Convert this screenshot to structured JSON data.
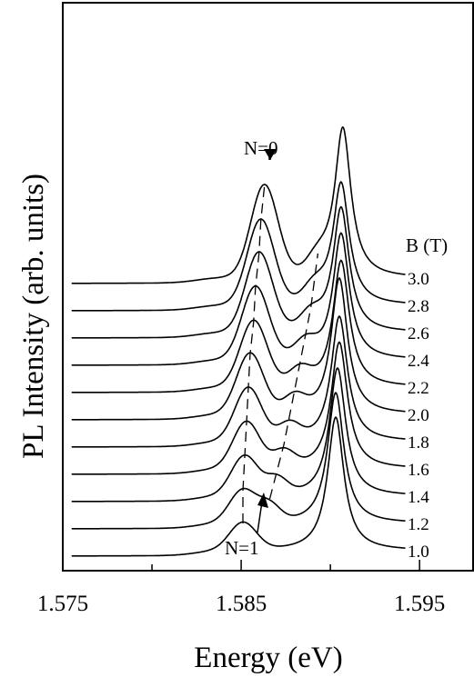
{
  "chart_data": {
    "type": "line",
    "xlabel": "Energy (eV)",
    "ylabel": "PL Intensity (arb. units)",
    "xlim": [
      1.575,
      1.598
    ],
    "x_ticks": [
      1.575,
      1.585,
      1.595
    ],
    "x_tick_labels": [
      "1.575",
      "1.585",
      "1.595"
    ],
    "legend_title": "B (T)",
    "legend_placement": "right",
    "grid": false,
    "series": [
      {
        "b_field": "1.0",
        "baseline": 0.0,
        "n0_peak": [
          1.5851,
          0.2
        ],
        "n1_peak": [
          1.5873,
          0.0
        ],
        "main_peak": [
          1.5903,
          0.98
        ]
      },
      {
        "b_field": "1.2",
        "baseline": 0.2,
        "n0_peak": [
          1.5851,
          0.24
        ],
        "n1_peak": [
          1.5866,
          0.12
        ],
        "main_peak": [
          1.5903,
          0.96
        ]
      },
      {
        "b_field": "1.4",
        "baseline": 0.4,
        "n0_peak": [
          1.5852,
          0.29
        ],
        "n1_peak": [
          1.587,
          0.12
        ],
        "main_peak": [
          1.5904,
          0.94
        ]
      },
      {
        "b_field": "1.6",
        "baseline": 0.6,
        "n0_peak": [
          1.5853,
          0.34
        ],
        "n1_peak": [
          1.5874,
          0.12
        ],
        "main_peak": [
          1.5905,
          0.93
        ]
      },
      {
        "b_field": "1.8",
        "baseline": 0.8,
        "n0_peak": [
          1.5854,
          0.39
        ],
        "n1_peak": [
          1.5877,
          0.12
        ],
        "main_peak": [
          1.5905,
          0.92
        ]
      },
      {
        "b_field": "2.0",
        "baseline": 1.0,
        "n0_peak": [
          1.5855,
          0.44
        ],
        "n1_peak": [
          1.588,
          0.12
        ],
        "main_peak": [
          1.5905,
          1.0
        ]
      },
      {
        "b_field": "2.2",
        "baseline": 1.2,
        "n0_peak": [
          1.5857,
          0.48
        ],
        "n1_peak": [
          1.5883,
          0.12
        ],
        "main_peak": [
          1.5906,
          0.93
        ]
      },
      {
        "b_field": "2.4",
        "baseline": 1.4,
        "n0_peak": [
          1.5858,
          0.53
        ],
        "n1_peak": [
          1.5886,
          0.12
        ],
        "main_peak": [
          1.5906,
          0.93
        ]
      },
      {
        "b_field": "2.6",
        "baseline": 1.6,
        "n0_peak": [
          1.586,
          0.58
        ],
        "n1_peak": [
          1.5889,
          0.12
        ],
        "main_peak": [
          1.5906,
          0.92
        ]
      },
      {
        "b_field": "2.8",
        "baseline": 1.8,
        "n0_peak": [
          1.5861,
          0.62
        ],
        "n1_peak": [
          1.5891,
          0.12
        ],
        "main_peak": [
          1.5906,
          0.9
        ]
      },
      {
        "b_field": "3.0",
        "baseline": 2.0,
        "n0_peak": [
          1.5863,
          0.67
        ],
        "n1_peak": [
          1.5893,
          0.12
        ],
        "main_peak": [
          1.5907,
          1.1
        ]
      }
    ],
    "annotations": [
      {
        "text": "N=0",
        "x": 1.5863
      },
      {
        "text": "N=1",
        "x": 1.5855
      }
    ]
  }
}
